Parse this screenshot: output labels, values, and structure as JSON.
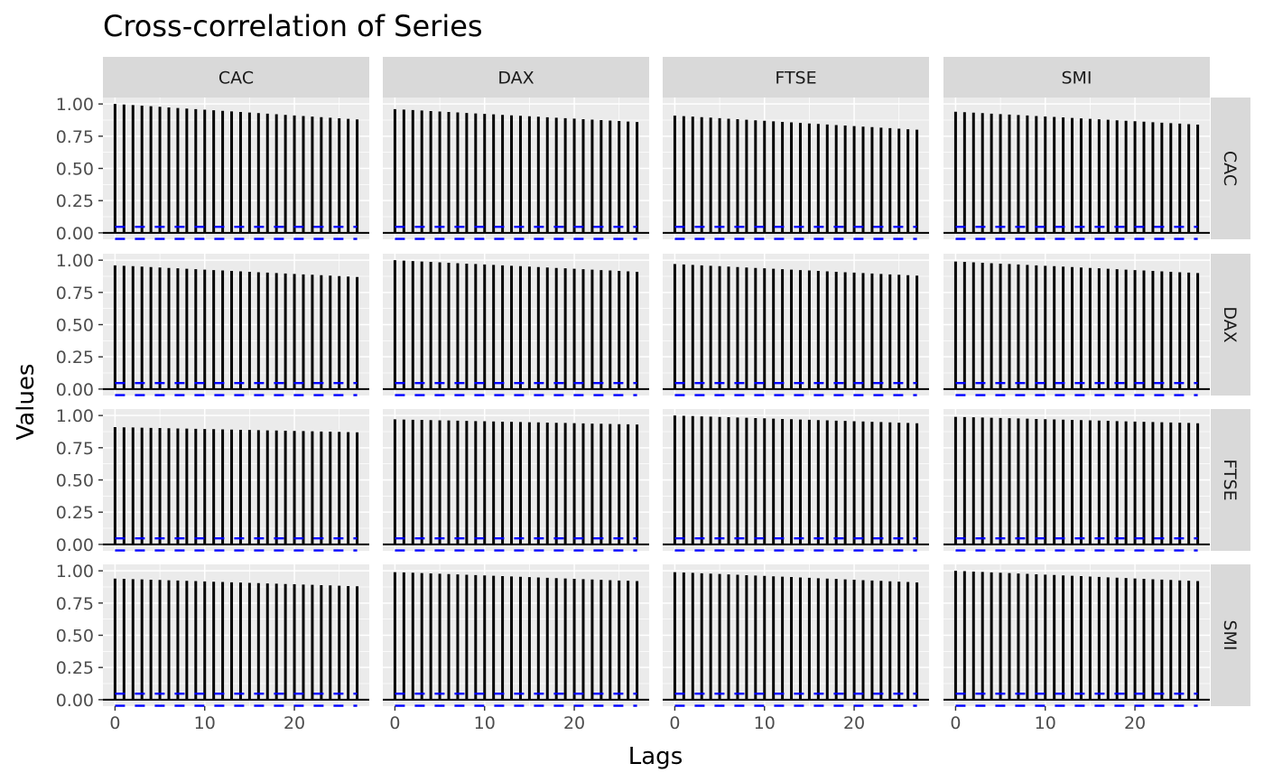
{
  "chart_data": {
    "type": "bar",
    "title": "Cross-correlation of Series",
    "xlabel": "Lags",
    "ylabel": "Values",
    "columns": [
      "CAC",
      "DAX",
      "FTSE",
      "SMI"
    ],
    "rows": [
      "CAC",
      "DAX",
      "FTSE",
      "SMI"
    ],
    "lags": [
      0,
      1,
      2,
      3,
      4,
      5,
      6,
      7,
      8,
      9,
      10,
      11,
      12,
      13,
      14,
      15,
      16,
      17,
      18,
      19,
      20,
      21,
      22,
      23,
      24,
      25,
      26,
      27
    ],
    "xlim": [
      -1.35,
      28.35
    ],
    "ylim": [
      -0.05,
      1.05
    ],
    "x_ticks": [
      0,
      10,
      20
    ],
    "y_ticks": [
      0.0,
      0.25,
      0.5,
      0.75,
      1.0
    ],
    "y_tick_labels": [
      "0.00",
      "0.25",
      "0.50",
      "0.75",
      "1.00"
    ],
    "ci_upper": 0.047,
    "ci_lower": -0.047,
    "grid": true,
    "panels": [
      {
        "row": "CAC",
        "col": "CAC",
        "start": 1.0,
        "end": 0.88
      },
      {
        "row": "CAC",
        "col": "DAX",
        "start": 0.96,
        "end": 0.86
      },
      {
        "row": "CAC",
        "col": "FTSE",
        "start": 0.91,
        "end": 0.8
      },
      {
        "row": "CAC",
        "col": "SMI",
        "start": 0.94,
        "end": 0.84
      },
      {
        "row": "DAX",
        "col": "CAC",
        "start": 0.96,
        "end": 0.87
      },
      {
        "row": "DAX",
        "col": "DAX",
        "start": 1.0,
        "end": 0.91
      },
      {
        "row": "DAX",
        "col": "FTSE",
        "start": 0.97,
        "end": 0.88
      },
      {
        "row": "DAX",
        "col": "SMI",
        "start": 0.99,
        "end": 0.9
      },
      {
        "row": "FTSE",
        "col": "CAC",
        "start": 0.91,
        "end": 0.87
      },
      {
        "row": "FTSE",
        "col": "DAX",
        "start": 0.97,
        "end": 0.93
      },
      {
        "row": "FTSE",
        "col": "FTSE",
        "start": 1.0,
        "end": 0.94
      },
      {
        "row": "FTSE",
        "col": "SMI",
        "start": 0.99,
        "end": 0.94
      },
      {
        "row": "SMI",
        "col": "CAC",
        "start": 0.94,
        "end": 0.88
      },
      {
        "row": "SMI",
        "col": "DAX",
        "start": 0.99,
        "end": 0.92
      },
      {
        "row": "SMI",
        "col": "FTSE",
        "start": 0.99,
        "end": 0.91
      },
      {
        "row": "SMI",
        "col": "SMI",
        "start": 1.0,
        "end": 0.92
      }
    ]
  }
}
